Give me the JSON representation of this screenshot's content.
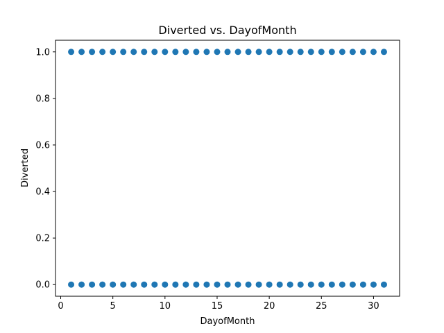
{
  "chart_data": {
    "type": "scatter",
    "title": "Diverted vs. DayofMonth",
    "xlabel": "DayofMonth",
    "ylabel": "Diverted",
    "xlim": [
      -0.5,
      32.5
    ],
    "ylim": [
      -0.05,
      1.05
    ],
    "xticks": [
      0,
      5,
      10,
      15,
      20,
      25,
      30
    ],
    "xtick_labels": [
      "0",
      "5",
      "10",
      "15",
      "20",
      "25",
      "30"
    ],
    "yticks": [
      0.0,
      0.2,
      0.4,
      0.6,
      0.8,
      1.0
    ],
    "ytick_labels": [
      "0.0",
      "0.2",
      "0.4",
      "0.6",
      "0.8",
      "1.0"
    ],
    "grid": false,
    "marker_color": "#1f77b4",
    "series": [
      {
        "x": [
          1,
          2,
          3,
          4,
          5,
          6,
          7,
          8,
          9,
          10,
          11,
          12,
          13,
          14,
          15,
          16,
          17,
          18,
          19,
          20,
          21,
          22,
          23,
          24,
          25,
          26,
          27,
          28,
          29,
          30,
          31,
          1,
          2,
          3,
          4,
          5,
          6,
          7,
          8,
          9,
          10,
          11,
          12,
          13,
          14,
          15,
          16,
          17,
          18,
          19,
          20,
          21,
          22,
          23,
          24,
          25,
          26,
          27,
          28,
          29,
          30,
          31
        ],
        "y": [
          0,
          0,
          0,
          0,
          0,
          0,
          0,
          0,
          0,
          0,
          0,
          0,
          0,
          0,
          0,
          0,
          0,
          0,
          0,
          0,
          0,
          0,
          0,
          0,
          0,
          0,
          0,
          0,
          0,
          0,
          0,
          1,
          1,
          1,
          1,
          1,
          1,
          1,
          1,
          1,
          1,
          1,
          1,
          1,
          1,
          1,
          1,
          1,
          1,
          1,
          1,
          1,
          1,
          1,
          1,
          1,
          1,
          1,
          1,
          1,
          1,
          1
        ]
      }
    ]
  }
}
